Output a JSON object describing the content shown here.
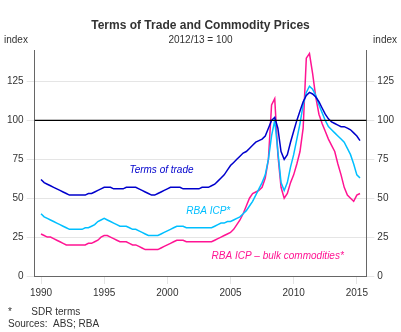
{
  "chart_data": {
    "type": "line",
    "title": "Terms of Trade and Commodity Prices",
    "subtitle": "2012/13 = 100",
    "ylabel": "index",
    "y2label": "index",
    "notes": [
      "*       SDR terms",
      "Sources:  ABS; RBA"
    ],
    "xlim": [
      1989.5,
      2015.75
    ],
    "xticks": [
      1990,
      1995,
      2000,
      2005,
      2010,
      2015
    ],
    "ylim": [
      0,
      145
    ],
    "yticks": [
      0,
      25,
      50,
      75,
      100,
      125
    ],
    "y2lim": [
      0,
      145
    ],
    "y2ticks": [
      0,
      25,
      50,
      75,
      100,
      125
    ],
    "grid": "y",
    "hline": 100,
    "x": [
      1990.0,
      1990.25,
      1990.5,
      1990.75,
      1991.0,
      1991.25,
      1991.5,
      1991.75,
      1992.0,
      1992.25,
      1992.5,
      1992.75,
      1993.0,
      1993.25,
      1993.5,
      1993.75,
      1994.0,
      1994.25,
      1994.5,
      1994.75,
      1995.0,
      1995.25,
      1995.5,
      1995.75,
      1996.0,
      1996.25,
      1996.5,
      1996.75,
      1997.0,
      1997.25,
      1997.5,
      1997.75,
      1998.0,
      1998.25,
      1998.5,
      1998.75,
      1999.0,
      1999.25,
      1999.5,
      1999.75,
      2000.0,
      2000.25,
      2000.5,
      2000.75,
      2001.0,
      2001.25,
      2001.5,
      2001.75,
      2002.0,
      2002.25,
      2002.5,
      2002.75,
      2003.0,
      2003.25,
      2003.5,
      2003.75,
      2004.0,
      2004.25,
      2004.5,
      2004.75,
      2005.0,
      2005.25,
      2005.5,
      2005.75,
      2006.0,
      2006.25,
      2006.5,
      2006.75,
      2007.0,
      2007.25,
      2007.5,
      2007.75,
      2008.0,
      2008.25,
      2008.5,
      2008.75,
      2009.0,
      2009.25,
      2009.5,
      2009.75,
      2010.0,
      2010.25,
      2010.5,
      2010.75,
      2011.0,
      2011.25,
      2011.5,
      2011.75,
      2012.0,
      2012.25,
      2012.5,
      2012.75,
      2013.0,
      2013.25,
      2013.5,
      2013.75,
      2014.0,
      2014.25,
      2014.5,
      2014.75,
      2015.0,
      2015.25
    ],
    "series": [
      {
        "name": "Terms of trade",
        "color": "#0000CC",
        "label_x": 1997.0,
        "label_y": 66,
        "values": [
          62,
          60,
          59,
          58,
          57,
          56,
          55,
          54,
          53,
          52,
          52,
          52,
          52,
          52,
          52,
          53,
          53,
          54,
          55,
          56,
          57,
          57,
          57,
          56,
          56,
          56,
          56,
          57,
          57,
          57,
          57,
          56,
          55,
          54,
          53,
          52,
          52,
          53,
          54,
          55,
          56,
          57,
          57,
          57,
          57,
          56,
          56,
          56,
          56,
          56,
          56,
          57,
          57,
          57,
          58,
          59,
          61,
          63,
          65,
          68,
          71,
          73,
          75,
          77,
          79,
          80,
          82,
          84,
          86,
          87,
          88,
          90,
          95,
          100,
          102,
          95,
          80,
          75,
          78,
          86,
          93,
          100,
          106,
          112,
          116,
          118,
          117,
          115,
          112,
          108,
          104,
          101,
          99,
          98,
          97,
          96,
          96,
          95,
          94,
          92,
          90,
          87
        ]
      },
      {
        "name": "RBA ICP*",
        "color": "#00BFFF",
        "label_x": 2001.5,
        "label_y": 40,
        "values": [
          40,
          38,
          37,
          36,
          35,
          34,
          33,
          32,
          31,
          30,
          30,
          30,
          30,
          30,
          31,
          31,
          32,
          33,
          35,
          36,
          37,
          36,
          35,
          34,
          33,
          32,
          32,
          32,
          31,
          30,
          30,
          29,
          28,
          27,
          26,
          26,
          26,
          26,
          27,
          28,
          29,
          30,
          31,
          32,
          32,
          32,
          31,
          31,
          31,
          31,
          31,
          31,
          31,
          31,
          31,
          32,
          33,
          34,
          34,
          35,
          35,
          36,
          37,
          38,
          40,
          42,
          45,
          48,
          52,
          56,
          60,
          65,
          75,
          90,
          100,
          80,
          60,
          55,
          60,
          70,
          78,
          88,
          98,
          110,
          118,
          122,
          120,
          116,
          110,
          105,
          100,
          96,
          94,
          92,
          90,
          88,
          86,
          82,
          78,
          72,
          65,
          63
        ]
      },
      {
        "name": "RBA ICP – bulk commodities*",
        "color": "#FF1493",
        "label_x": 2003.5,
        "label_y": 11,
        "values": [
          27,
          26,
          25,
          25,
          24,
          23,
          22,
          21,
          20,
          20,
          20,
          20,
          20,
          20,
          20,
          21,
          21,
          22,
          23,
          25,
          26,
          26,
          25,
          24,
          23,
          22,
          22,
          22,
          21,
          20,
          20,
          19,
          18,
          17,
          17,
          17,
          17,
          17,
          18,
          19,
          20,
          21,
          22,
          23,
          23,
          23,
          22,
          22,
          22,
          22,
          22,
          22,
          22,
          22,
          22,
          23,
          24,
          25,
          26,
          27,
          28,
          30,
          33,
          36,
          40,
          45,
          50,
          53,
          54,
          55,
          57,
          63,
          75,
          110,
          114,
          78,
          57,
          50,
          53,
          60,
          65,
          72,
          80,
          95,
          140,
          143,
          130,
          115,
          104,
          98,
          93,
          88,
          84,
          80,
          72,
          65,
          57,
          52,
          50,
          48,
          52,
          53
        ]
      }
    ]
  }
}
